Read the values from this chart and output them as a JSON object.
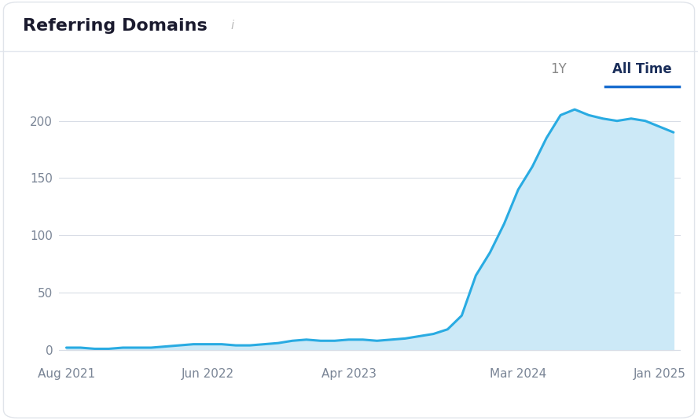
{
  "title": "Referring Domains",
  "title_fontsize": 16,
  "title_color": "#1a1a2e",
  "background_color": "#f8f9fb",
  "card_color": "#ffffff",
  "plot_background": "#ffffff",
  "line_color": "#29abe2",
  "fill_color": "#cce9f7",
  "fill_alpha": 1.0,
  "grid_color": "#d8dde6",
  "ylabel_ticks": [
    0,
    50,
    100,
    150,
    200
  ],
  "x_labels": [
    "Aug 2021",
    "Jun 2022",
    "Apr 2023",
    "Mar 2024",
    "Jan 2025"
  ],
  "x_positions": [
    0,
    10,
    20,
    32,
    42
  ],
  "data_x": [
    0,
    1,
    2,
    3,
    4,
    5,
    6,
    7,
    8,
    9,
    10,
    11,
    12,
    13,
    14,
    15,
    16,
    17,
    18,
    19,
    20,
    21,
    22,
    23,
    24,
    25,
    26,
    27,
    28,
    29,
    30,
    31,
    32,
    33,
    34,
    35,
    36,
    37,
    38,
    39,
    40,
    41,
    42,
    43
  ],
  "data_y": [
    2,
    2,
    1,
    1,
    2,
    2,
    2,
    3,
    4,
    5,
    5,
    5,
    4,
    4,
    5,
    6,
    8,
    9,
    8,
    8,
    9,
    9,
    8,
    9,
    10,
    12,
    14,
    18,
    30,
    65,
    85,
    110,
    140,
    160,
    185,
    205,
    210,
    205,
    202,
    200,
    202,
    200,
    195,
    190
  ],
  "ylim": [
    -8,
    230
  ],
  "xlim": [
    -0.5,
    43.5
  ],
  "button_1y_text": "1Y",
  "button_alltime_text": "All Time",
  "button_color_active": "#1a2e5a",
  "button_color_inactive": "#888888",
  "info_icon_color": "#bbbbbb",
  "tick_color": "#7a8596",
  "tick_fontsize": 11,
  "line_width": 2.2,
  "border_color": "#e0e4ea",
  "separator_color": "#e4e8ef",
  "underline_color": "#1a6ecf"
}
